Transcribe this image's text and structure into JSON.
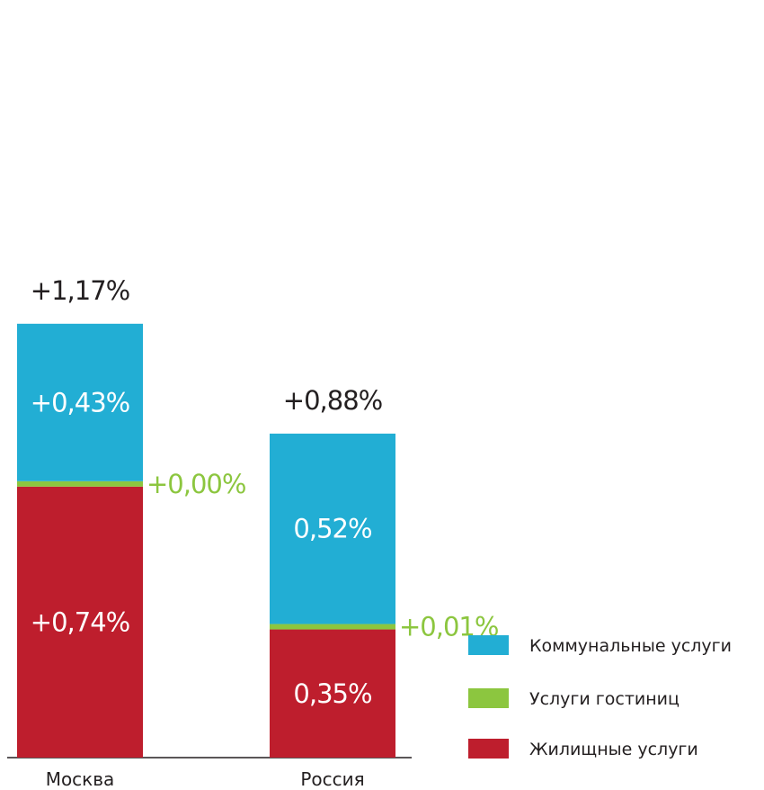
{
  "chart_data": {
    "type": "bar",
    "stacked": true,
    "categories": [
      "Москва",
      "Россия"
    ],
    "series": [
      {
        "name": "Жилищные услуги",
        "color": "#be1e2d",
        "values": [
          0.74,
          0.35
        ],
        "labels": [
          "+0,74%",
          "0,35%"
        ]
      },
      {
        "name": "Услуги гостиниц",
        "color": "#8cc63f",
        "values": [
          0.0,
          0.01
        ],
        "labels": [
          "+0,00%",
          "+0,01%"
        ]
      },
      {
        "name": "Коммунальные услуги",
        "color": "#22aed4",
        "values": [
          0.43,
          0.52
        ],
        "labels": [
          "+0,43%",
          "0,52%"
        ]
      }
    ],
    "totals": [
      "+1,17%",
      "+0,88%"
    ],
    "legend_order": [
      "Коммунальные услуги",
      "Услуги гостиниц",
      "Жилищные услуги"
    ],
    "legend_position": "bottom-right",
    "grid": false
  }
}
